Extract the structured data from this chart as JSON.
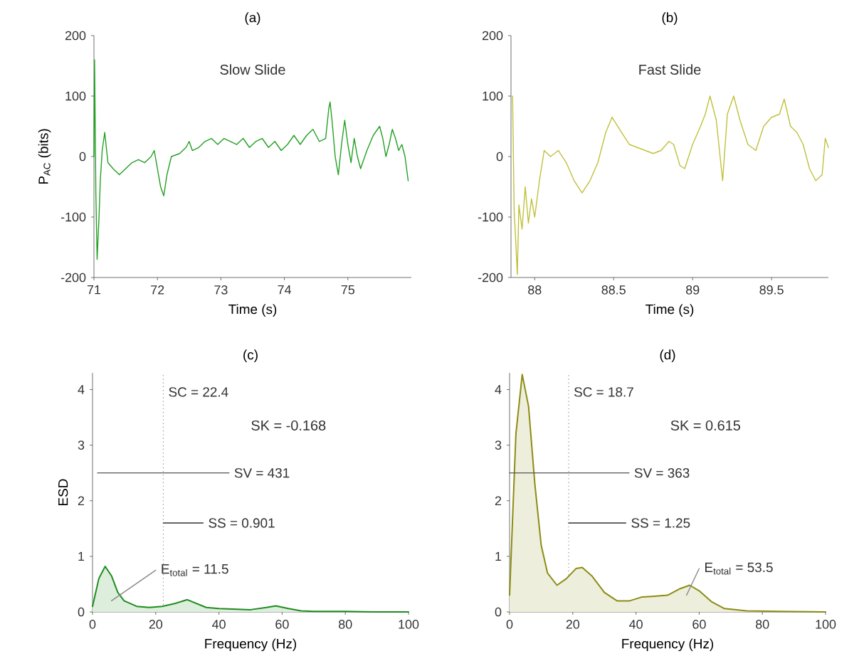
{
  "chart_data": [
    {
      "type": "line",
      "title": "(a)",
      "xlabel": "Time (s)",
      "ylabel": "P$_{AC}$ (bits)",
      "annotations": [
        "Slow Slide"
      ],
      "xlim": [
        71,
        76
      ],
      "xticks": [
        71,
        72,
        73,
        74,
        75
      ],
      "ylim": [
        -200,
        200
      ],
      "yticks": [
        -200,
        -100,
        0,
        100,
        200
      ],
      "series": [
        {
          "color": "#22a022",
          "x": [
            71.0,
            71.01,
            71.03,
            71.05,
            71.08,
            71.1,
            71.13,
            71.17,
            71.22,
            71.3,
            71.4,
            71.5,
            71.6,
            71.7,
            71.8,
            71.9,
            71.95,
            72.0,
            72.05,
            72.1,
            72.15,
            72.22,
            72.35,
            72.45,
            72.5,
            72.55,
            72.65,
            72.75,
            72.85,
            72.95,
            73.05,
            73.15,
            73.25,
            73.35,
            73.45,
            73.55,
            73.65,
            73.75,
            73.85,
            73.95,
            74.05,
            74.15,
            74.25,
            74.35,
            74.45,
            74.55,
            74.65,
            74.7,
            74.72,
            74.75,
            74.8,
            74.85,
            74.9,
            74.95,
            75.0,
            75.05,
            75.1,
            75.15,
            75.2,
            75.3,
            75.4,
            75.5,
            75.55,
            75.6,
            75.65,
            75.7,
            75.75,
            75.8,
            75.85,
            75.9,
            75.95
          ],
          "values": [
            0,
            160,
            -60,
            -170,
            -100,
            -40,
            10,
            40,
            -10,
            -20,
            -30,
            -20,
            -10,
            -5,
            -10,
            0,
            10,
            -20,
            -50,
            -65,
            -30,
            0,
            5,
            15,
            25,
            10,
            15,
            25,
            30,
            20,
            30,
            25,
            20,
            30,
            15,
            25,
            30,
            15,
            25,
            10,
            20,
            35,
            20,
            35,
            45,
            25,
            30,
            80,
            90,
            60,
            0,
            -30,
            20,
            60,
            20,
            -10,
            30,
            0,
            -20,
            10,
            35,
            50,
            30,
            0,
            20,
            45,
            30,
            10,
            20,
            0,
            -40
          ]
        }
      ]
    },
    {
      "type": "line",
      "title": "(b)",
      "xlabel": "Time (s)",
      "annotations": [
        "Fast Slide"
      ],
      "xlim": [
        87.85,
        89.86
      ],
      "xticks": [
        88,
        88.5,
        89,
        89.5
      ],
      "ylim": [
        -200,
        200
      ],
      "yticks": [
        -200,
        -100,
        0,
        100,
        200
      ],
      "series": [
        {
          "color": "#c0c03c",
          "x": [
            87.86,
            87.87,
            87.88,
            87.89,
            87.9,
            87.92,
            87.94,
            87.96,
            87.98,
            88.0,
            88.03,
            88.06,
            88.1,
            88.15,
            88.2,
            88.25,
            88.3,
            88.35,
            88.4,
            88.45,
            88.49,
            88.55,
            88.6,
            88.65,
            88.7,
            88.75,
            88.8,
            88.85,
            88.88,
            88.92,
            88.95,
            89.0,
            89.05,
            89.08,
            89.11,
            89.15,
            89.19,
            89.22,
            89.26,
            89.3,
            89.35,
            89.4,
            89.45,
            89.5,
            89.55,
            89.58,
            89.62,
            89.66,
            89.7,
            89.74,
            89.78,
            89.82,
            89.84,
            89.86
          ],
          "values": [
            100,
            -90,
            -140,
            -195,
            -80,
            -120,
            -50,
            -110,
            -70,
            -100,
            -40,
            10,
            0,
            10,
            -10,
            -40,
            -60,
            -40,
            -10,
            40,
            65,
            40,
            20,
            15,
            10,
            5,
            10,
            25,
            20,
            -15,
            -20,
            20,
            50,
            70,
            100,
            60,
            -40,
            70,
            100,
            60,
            20,
            10,
            50,
            65,
            70,
            95,
            50,
            40,
            20,
            -20,
            -40,
            -30,
            30,
            15
          ]
        }
      ]
    },
    {
      "type": "area",
      "title": "(c)",
      "xlabel": "Frequency (Hz)",
      "ylabel": "ESD",
      "annotations": [
        "SK = -0.168"
      ],
      "xlim": [
        0,
        100
      ],
      "xticks": [
        0,
        20,
        40,
        60,
        80,
        100
      ],
      "ylim": [
        0,
        4.3
      ],
      "yticks": [
        0,
        1,
        2,
        3,
        4
      ],
      "ref_lines": [
        {
          "axis": "x",
          "value": 22.4,
          "label": "SC = 22.4",
          "line_style": "dotted",
          "color": "#888888"
        }
      ],
      "series": [
        {
          "color": "#1e8c1e",
          "x": [
            0,
            2,
            4,
            6,
            8,
            10,
            14,
            18,
            22,
            26,
            30,
            33,
            36,
            40,
            45,
            50,
            55,
            58,
            62,
            66,
            70,
            80,
            90,
            100
          ],
          "values": [
            0.1,
            0.6,
            0.82,
            0.65,
            0.35,
            0.2,
            0.1,
            0.08,
            0.1,
            0.15,
            0.22,
            0.15,
            0.08,
            0.06,
            0.05,
            0.04,
            0.08,
            0.11,
            0.06,
            0.02,
            0.01,
            0.01,
            0,
            0
          ]
        },
        {
          "type": "line",
          "name": "SV = 431",
          "color": "#555555",
          "x": [
            1.6,
            43.2
          ],
          "values": [
            2.5,
            2.5
          ]
        },
        {
          "type": "line",
          "name": "SS = 0.901",
          "color": "#333333",
          "x": [
            22.4,
            35
          ],
          "values": [
            1.6,
            1.6
          ]
        },
        {
          "type": "line",
          "name": "E$_{total}$ = 11.5",
          "color": "#888888",
          "x": [
            6,
            20
          ],
          "values": [
            0.2,
            0.75
          ]
        }
      ]
    },
    {
      "type": "area",
      "title": "(d)",
      "xlabel": "Frequency (Hz)",
      "annotations": [
        "SK = 0.615"
      ],
      "xlim": [
        0,
        100
      ],
      "xticks": [
        0,
        20,
        40,
        60,
        80,
        100
      ],
      "ylim": [
        0,
        4.3
      ],
      "yticks": [
        0,
        1,
        2,
        3,
        4
      ],
      "ref_lines": [
        {
          "axis": "x",
          "value": 18.7,
          "label": "SC = 18.7",
          "line_style": "dotted",
          "color": "#888888"
        }
      ],
      "series": [
        {
          "color": "#8c8c14",
          "x": [
            0,
            2,
            4,
            6,
            8,
            10,
            12,
            15,
            18,
            21,
            23,
            26,
            30,
            34,
            38,
            42,
            45,
            50,
            54,
            57,
            60,
            64,
            68,
            75,
            85,
            100
          ],
          "values": [
            0.3,
            3.2,
            4.27,
            3.7,
            2.3,
            1.2,
            0.7,
            0.48,
            0.6,
            0.78,
            0.8,
            0.65,
            0.35,
            0.2,
            0.2,
            0.27,
            0.28,
            0.3,
            0.42,
            0.48,
            0.38,
            0.18,
            0.06,
            0.02,
            0.01,
            0
          ]
        },
        {
          "type": "line",
          "name": "SV = 363",
          "color": "#555555",
          "x": [
            0,
            37.8
          ],
          "values": [
            2.5,
            2.5
          ]
        },
        {
          "type": "line",
          "name": "SS = 1.25",
          "color": "#333333",
          "x": [
            18.7,
            36.8
          ],
          "values": [
            1.6,
            1.6
          ]
        },
        {
          "type": "line",
          "name": "E$_{total}$ = 53.5",
          "color": "#888888",
          "x": [
            56,
            60
          ],
          "values": [
            0.3,
            0.78
          ]
        }
      ]
    }
  ]
}
